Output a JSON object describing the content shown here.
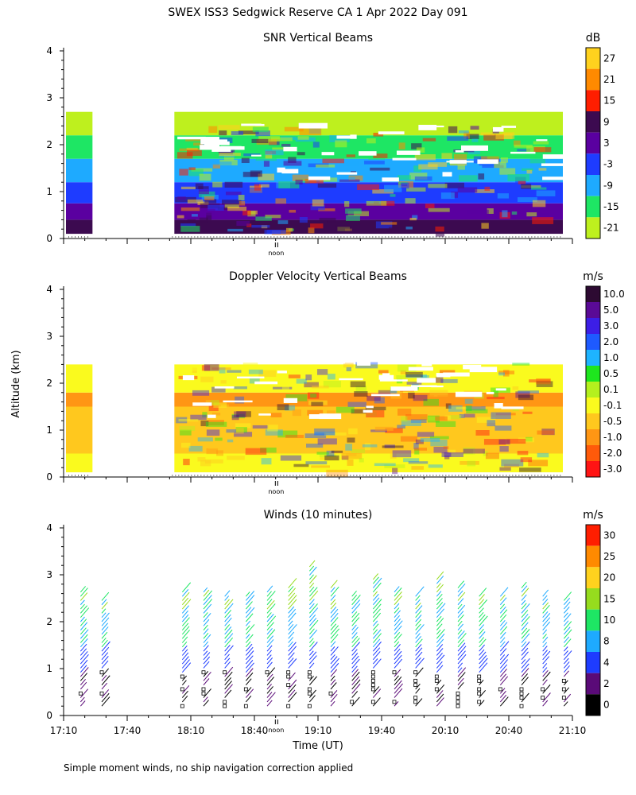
{
  "header": {
    "title": "SWEX ISS3 Sedgwick Reserve CA   1 Apr 2022 Day 091"
  },
  "footer": {
    "note": "Simple moment winds, no ship navigation correction applied"
  },
  "chart_data": [
    {
      "type": "heatmap",
      "title": "SNR Vertical Beams",
      "xlabel": "",
      "ylabel": "",
      "ylim": [
        0,
        4
      ],
      "yticks": [
        0,
        1,
        2,
        3,
        4
      ],
      "xlim": [
        "17:10",
        "21:10"
      ],
      "noon_marker": "noon",
      "colorbar": {
        "unit": "dB",
        "labels": [
          "27",
          "21",
          "15",
          "9",
          "3",
          "-3",
          "-9",
          "-15",
          "-21"
        ],
        "colors": [
          "#ffd21e",
          "#ff8a00",
          "#ff1e00",
          "#3c0a50",
          "#5a00a0",
          "#1e3cff",
          "#1eaaff",
          "#1ee664",
          "#bef01e"
        ]
      },
      "data_gap": [
        "17:30",
        "18:00"
      ],
      "layers": [
        {
          "from": 0.1,
          "to": 0.4,
          "level": "9"
        },
        {
          "from": 0.4,
          "to": 0.75,
          "level": "3"
        },
        {
          "from": 0.75,
          "to": 1.2,
          "level": "-3"
        },
        {
          "from": 1.2,
          "to": 1.7,
          "level": "-9"
        },
        {
          "from": 1.7,
          "to": 2.2,
          "level": "-15"
        },
        {
          "from": 2.2,
          "to": 2.7,
          "level": "-21"
        }
      ]
    },
    {
      "type": "heatmap",
      "title": "Doppler Velocity Vertical Beams",
      "xlabel": "",
      "ylabel": "Altitude (km)",
      "ylim": [
        0,
        4
      ],
      "yticks": [
        0,
        1,
        2,
        3,
        4
      ],
      "xlim": [
        "17:10",
        "21:10"
      ],
      "noon_marker": "noon",
      "colorbar": {
        "unit": "m/s",
        "labels": [
          "10.0",
          "5.0",
          "3.0",
          "2.0",
          "1.0",
          "0.5",
          "0.1",
          "-0.1",
          "-0.5",
          "-1.0",
          "-2.0",
          "-3.0"
        ],
        "colors": [
          "#2d0a32",
          "#5a0a96",
          "#3c1ee6",
          "#1e5aff",
          "#1eb4ff",
          "#1ee61e",
          "#b4f01e",
          "#fafa1e",
          "#ffc81e",
          "#ff9614",
          "#ff5a0a",
          "#ff1414"
        ]
      },
      "data_gap": [
        "17:30",
        "18:00"
      ],
      "layers": [
        {
          "from": 0.1,
          "to": 0.5,
          "level": "-0.1"
        },
        {
          "from": 0.5,
          "to": 1.5,
          "level": "-0.5"
        },
        {
          "from": 1.5,
          "to": 1.8,
          "level": "-1.0"
        },
        {
          "from": 1.8,
          "to": 2.4,
          "level": "-0.1"
        }
      ]
    },
    {
      "type": "scatter",
      "title": "Winds (10 minutes)",
      "xlabel": "Time (UT)",
      "ylabel": "",
      "ylim": [
        0,
        4
      ],
      "yticks": [
        0,
        1,
        2,
        3,
        4
      ],
      "xlim": [
        "17:10",
        "21:10"
      ],
      "xticks": [
        "17:10",
        "17:40",
        "18:10",
        "18:40",
        "19:10",
        "19:40",
        "20:10",
        "20:40",
        "21:10"
      ],
      "noon_marker": "noon",
      "colorbar": {
        "unit": "m/s",
        "labels": [
          "30",
          "25",
          "20",
          "15",
          "10",
          "8",
          "4",
          "2",
          "0"
        ],
        "colors": [
          "#ff1e00",
          "#ff8a00",
          "#ffd21e",
          "#96dc1e",
          "#1ee664",
          "#1eaaff",
          "#1e3cff",
          "#5a0a78",
          "#000000"
        ]
      },
      "profile_times": [
        "17:18",
        "17:28",
        "18:06",
        "18:16",
        "18:26",
        "18:36",
        "18:46",
        "18:56",
        "19:06",
        "19:16",
        "19:26",
        "19:36",
        "19:46",
        "19:56",
        "20:06",
        "20:16",
        "20:26",
        "20:36",
        "20:46",
        "20:56",
        "21:06"
      ],
      "profile_tops": [
        2.7,
        2.5,
        2.7,
        2.7,
        2.6,
        2.6,
        2.7,
        2.8,
        3.2,
        2.8,
        2.6,
        2.9,
        2.7,
        2.6,
        2.9,
        2.8,
        2.6,
        2.6,
        2.8,
        2.6,
        2.5
      ]
    }
  ]
}
